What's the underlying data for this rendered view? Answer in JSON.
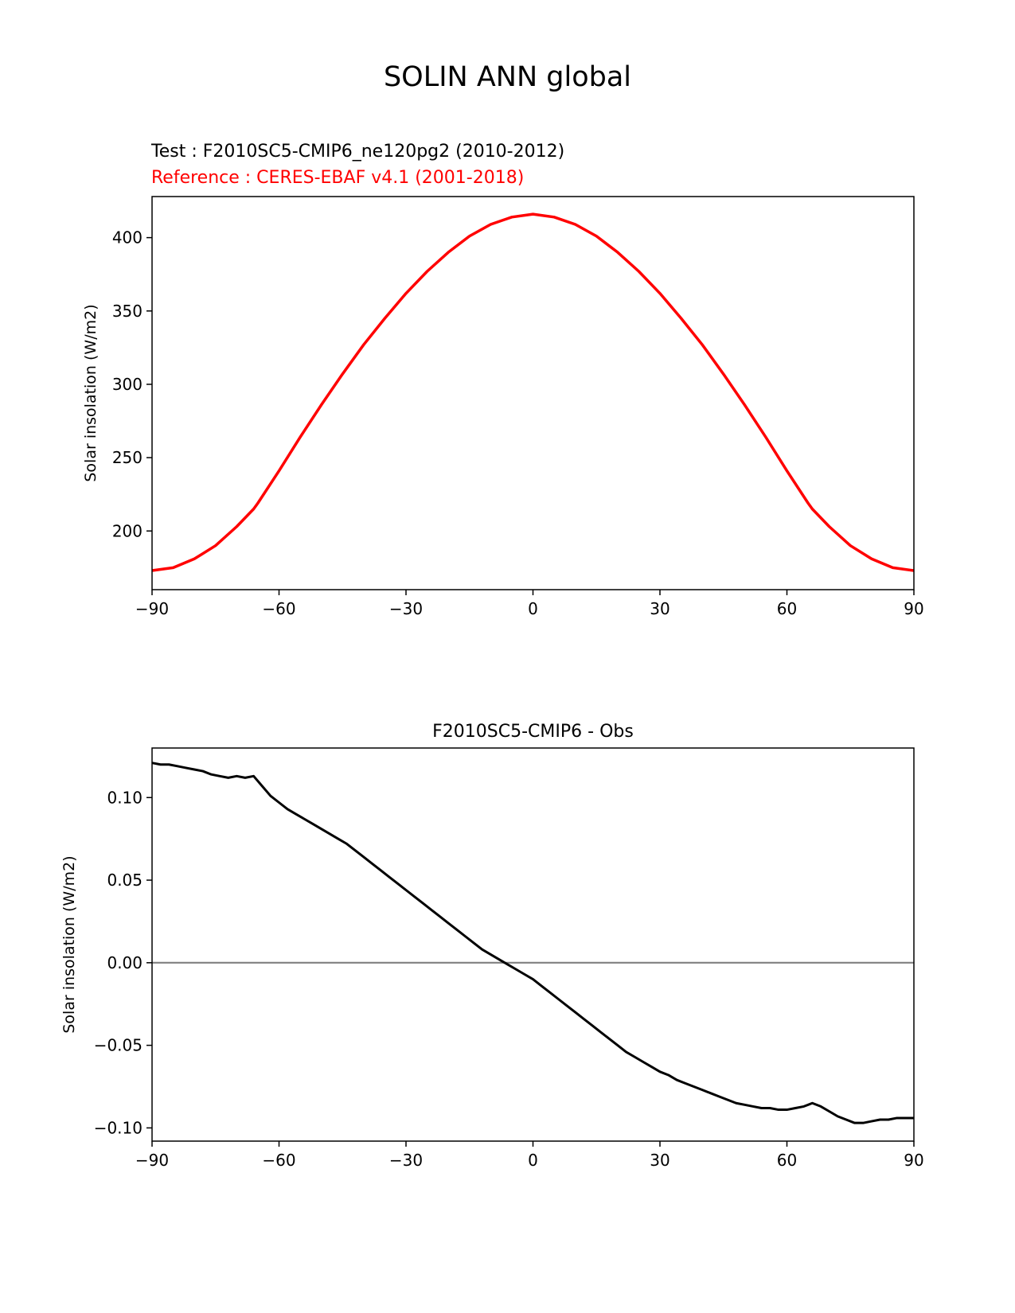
{
  "figure": {
    "title": "SOLIN ANN global",
    "test_label": "Test : F2010SC5-CMIP6_ne120pg2 (2010-2012)",
    "reference_label": "Reference : CERES-EBAF v4.1 (2001-2018)",
    "colors": {
      "test": "#000000",
      "reference": "#ff0000",
      "zero_line": "#808080"
    }
  },
  "chart_data": [
    {
      "type": "line",
      "title": "",
      "xlabel": "",
      "ylabel": "Solar insolation (W/m2)",
      "xlim": [
        -90,
        90
      ],
      "ylim": [
        160,
        428
      ],
      "xticks": [
        -90,
        -60,
        -30,
        0,
        30,
        60,
        90
      ],
      "xtick_labels": [
        "−90",
        "−60",
        "−30",
        "0",
        "30",
        "60",
        "90"
      ],
      "yticks": [
        200,
        250,
        300,
        350,
        400
      ],
      "ytick_labels": [
        "200",
        "250",
        "300",
        "350",
        "400"
      ],
      "x": [
        -90,
        -85,
        -80,
        -75,
        -70,
        -66,
        -65,
        -60,
        -55,
        -50,
        -45,
        -40,
        -35,
        -30,
        -25,
        -20,
        -15,
        -10,
        -5,
        0,
        5,
        10,
        15,
        20,
        25,
        30,
        35,
        40,
        45,
        50,
        55,
        60,
        65,
        66,
        70,
        75,
        80,
        85,
        90
      ],
      "series": [
        {
          "values": [
            173,
            175,
            181,
            190,
            203,
            215,
            219,
            241,
            264,
            286,
            307,
            327,
            345,
            362,
            377,
            390,
            401,
            409,
            414,
            416,
            414,
            409,
            401,
            390,
            377,
            362,
            345,
            327,
            307,
            286,
            264,
            241,
            219,
            215,
            203,
            190,
            181,
            175,
            173
          ]
        }
      ]
    },
    {
      "type": "line",
      "title": "F2010SC5-CMIP6 - Obs",
      "xlabel": "",
      "ylabel": "Solar insolation (W/m2)",
      "xlim": [
        -90,
        90
      ],
      "ylim": [
        -0.108,
        0.13
      ],
      "xticks": [
        -90,
        -60,
        -30,
        0,
        30,
        60,
        90
      ],
      "xtick_labels": [
        "−90",
        "−60",
        "−30",
        "0",
        "30",
        "60",
        "90"
      ],
      "yticks": [
        -0.1,
        -0.05,
        0,
        0.05,
        0.1
      ],
      "ytick_labels": [
        "−0.10",
        "−0.05",
        "0.00",
        "0.05",
        "0.10"
      ],
      "reference_line": 0,
      "x": [
        -90,
        -88,
        -86,
        -84,
        -82,
        -80,
        -78,
        -76,
        -74,
        -72,
        -70,
        -68,
        -66,
        -64,
        -62,
        -60,
        -58,
        -56,
        -54,
        -52,
        -50,
        -48,
        -46,
        -44,
        -42,
        -40,
        -38,
        -36,
        -34,
        -32,
        -30,
        -28,
        -26,
        -24,
        -22,
        -20,
        -18,
        -16,
        -14,
        -12,
        -10,
        -8,
        -6,
        -4,
        -2,
        0,
        2,
        4,
        6,
        8,
        10,
        12,
        14,
        16,
        18,
        20,
        22,
        24,
        26,
        28,
        30,
        32,
        34,
        36,
        38,
        40,
        42,
        44,
        46,
        48,
        50,
        52,
        54,
        56,
        58,
        60,
        62,
        64,
        66,
        68,
        70,
        72,
        74,
        76,
        78,
        80,
        82,
        84,
        86,
        88,
        90
      ],
      "series": [
        {
          "values": [
            0.121,
            0.12,
            0.12,
            0.119,
            0.118,
            0.117,
            0.116,
            0.114,
            0.113,
            0.112,
            0.113,
            0.112,
            0.113,
            0.107,
            0.101,
            0.097,
            0.093,
            0.09,
            0.087,
            0.084,
            0.081,
            0.078,
            0.075,
            0.072,
            0.068,
            0.064,
            0.06,
            0.056,
            0.052,
            0.048,
            0.044,
            0.04,
            0.036,
            0.032,
            0.028,
            0.024,
            0.02,
            0.016,
            0.012,
            0.008,
            0.005,
            0.002,
            -0.001,
            -0.004,
            -0.007,
            -0.01,
            -0.014,
            -0.018,
            -0.022,
            -0.026,
            -0.03,
            -0.034,
            -0.038,
            -0.042,
            -0.046,
            -0.05,
            -0.054,
            -0.057,
            -0.06,
            -0.063,
            -0.066,
            -0.068,
            -0.071,
            -0.073,
            -0.075,
            -0.077,
            -0.079,
            -0.081,
            -0.083,
            -0.085,
            -0.086,
            -0.087,
            -0.088,
            -0.088,
            -0.089,
            -0.089,
            -0.088,
            -0.087,
            -0.085,
            -0.087,
            -0.09,
            -0.093,
            -0.095,
            -0.097,
            -0.097,
            -0.096,
            -0.095,
            -0.095,
            -0.094,
            -0.094,
            -0.094
          ]
        }
      ]
    }
  ]
}
